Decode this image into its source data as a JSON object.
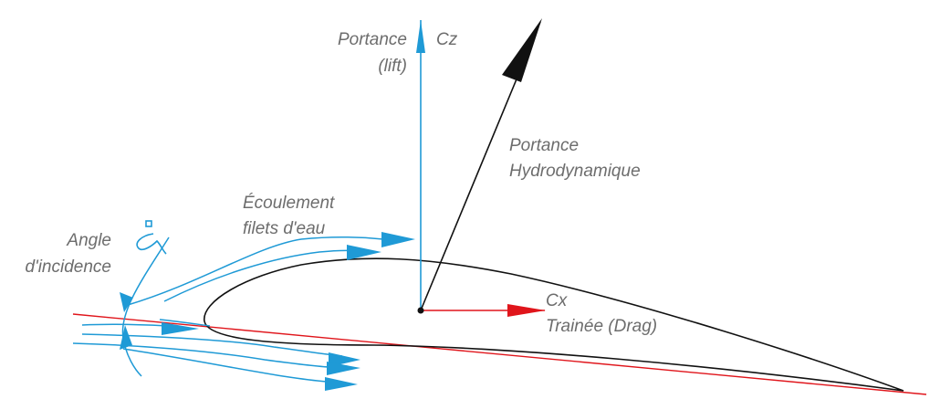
{
  "labels": {
    "lift_line1": "Portance",
    "lift_line2": "(lift)",
    "cz": "Cz",
    "resultant_line1": "Portance",
    "resultant_line2": "Hydrodynamique",
    "flow_line1": "Écoulement",
    "flow_line2": "filets d'eau",
    "angle_line1": "Angle",
    "angle_line2": "d'incidence",
    "cx": "Cx",
    "drag": "Trainée (Drag)"
  },
  "colors": {
    "blue": "#1f9ad6",
    "red": "#e0151b",
    "black": "#111111",
    "text": "#6d6d6d"
  }
}
